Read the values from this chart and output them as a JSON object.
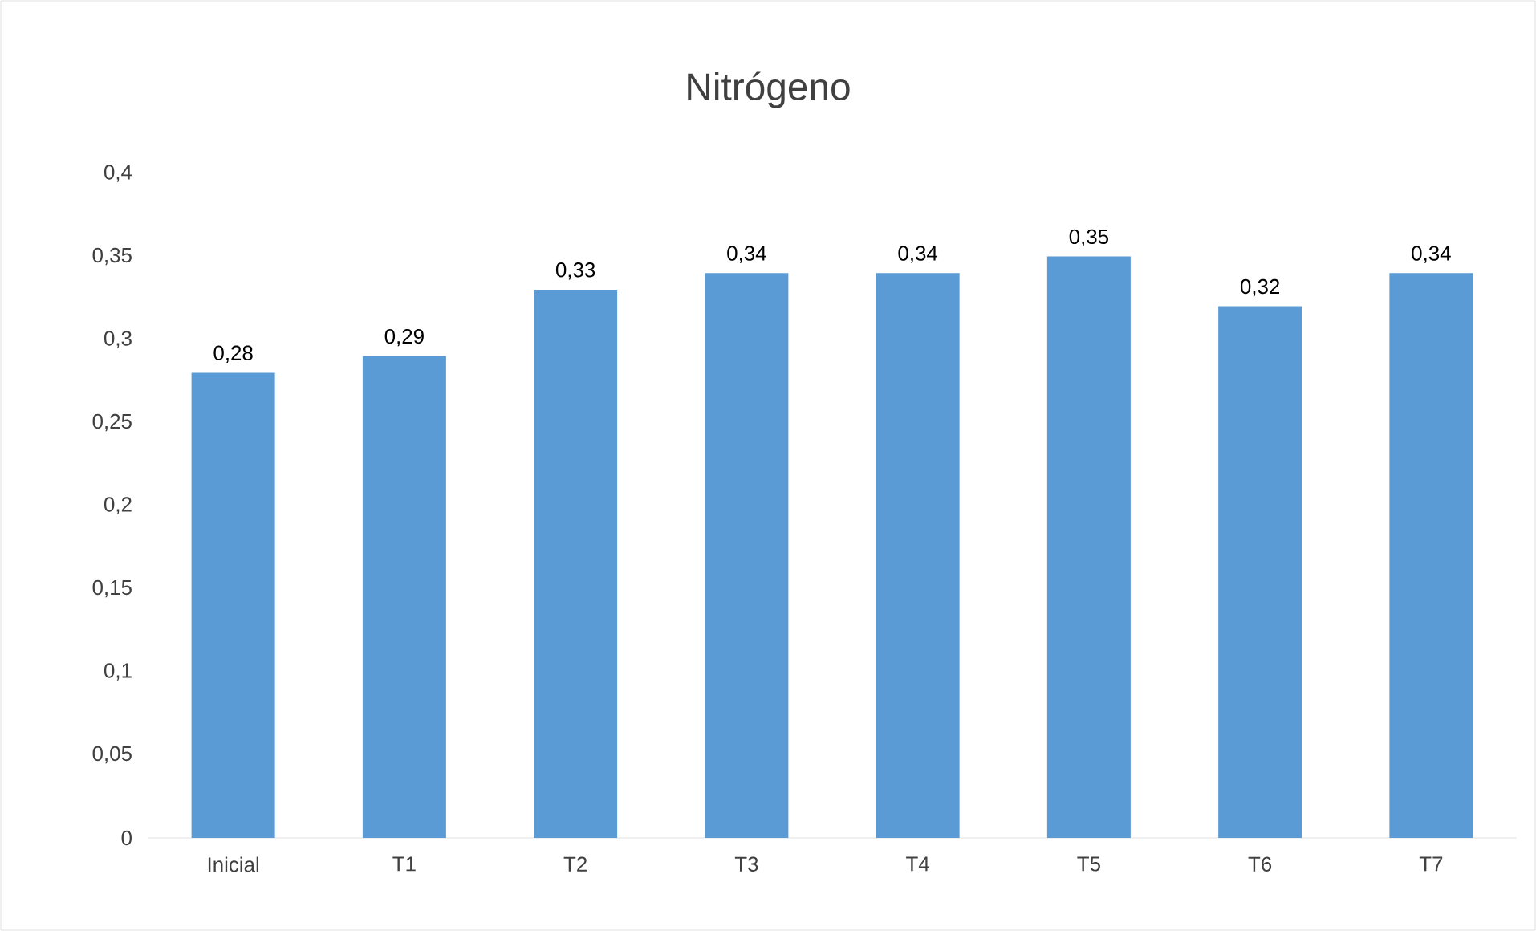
{
  "chart_data": {
    "type": "bar",
    "title": "Nitrógeno",
    "categories": [
      "Inicial",
      "T1",
      "T2",
      "T3",
      "T4",
      "T5",
      "T6",
      "T7"
    ],
    "values": [
      0.28,
      0.29,
      0.33,
      0.34,
      0.34,
      0.35,
      0.32,
      0.34
    ],
    "value_labels": [
      "0,28",
      "0,29",
      "0,33",
      "0,34",
      "0,34",
      "0,35",
      "0,32",
      "0,34"
    ],
    "color": "#5b9bd5",
    "ylim": [
      0,
      0.4
    ],
    "yticks": [
      0,
      {
        "value": 0.05,
        "label": "0,05"
      },
      {
        "value": 0.1,
        "label": "0,1"
      },
      {
        "value": 0.15,
        "label": "0,15"
      },
      {
        "value": 0.2,
        "label": "0,2"
      },
      {
        "value": 0.25,
        "label": "0,25"
      },
      {
        "value": 0.3,
        "label": "0,3"
      },
      {
        "value": 0.35,
        "label": "0,35"
      },
      {
        "value": 0.4,
        "label": "0,4"
      }
    ],
    "orientation": "vertical"
  }
}
